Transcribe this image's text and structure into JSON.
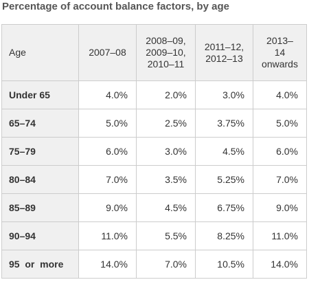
{
  "title": "Percentage of account balance factors, by age",
  "table": {
    "headers": [
      {
        "lines": [
          "Age"
        ]
      },
      {
        "lines": [
          "2007–08"
        ]
      },
      {
        "lines": [
          "2008–09,",
          "2009–10,",
          "2010–11"
        ]
      },
      {
        "lines": [
          "2011–12,",
          "2012–13"
        ]
      },
      {
        "lines": [
          "2013–14",
          "onwards"
        ]
      }
    ],
    "rows": [
      {
        "age": "Under 65",
        "values": [
          "4.0%",
          "2.0%",
          "3.0%",
          "4.0%"
        ]
      },
      {
        "age": "65–74",
        "values": [
          "5.0%",
          "2.5%",
          "3.75%",
          "5.0%"
        ]
      },
      {
        "age": "75–79",
        "values": [
          "6.0%",
          "3.0%",
          "4.5%",
          "6.0%"
        ]
      },
      {
        "age": "80–84",
        "values": [
          "7.0%",
          "3.5%",
          "5.25%",
          "7.0%"
        ]
      },
      {
        "age": "85–89",
        "values": [
          "9.0%",
          "4.5%",
          "6.75%",
          "9.0%"
        ]
      },
      {
        "age": "90–94",
        "values": [
          "11.0%",
          "5.5%",
          "8.25%",
          "11.0%"
        ]
      },
      {
        "age": "95  or  more",
        "values": [
          "14.0%",
          "7.0%",
          "10.5%",
          "14.0%"
        ]
      }
    ]
  },
  "colors": {
    "header_bg": "#f0f0f0",
    "border": "#cccccc",
    "title": "#555555",
    "text": "#333333"
  }
}
